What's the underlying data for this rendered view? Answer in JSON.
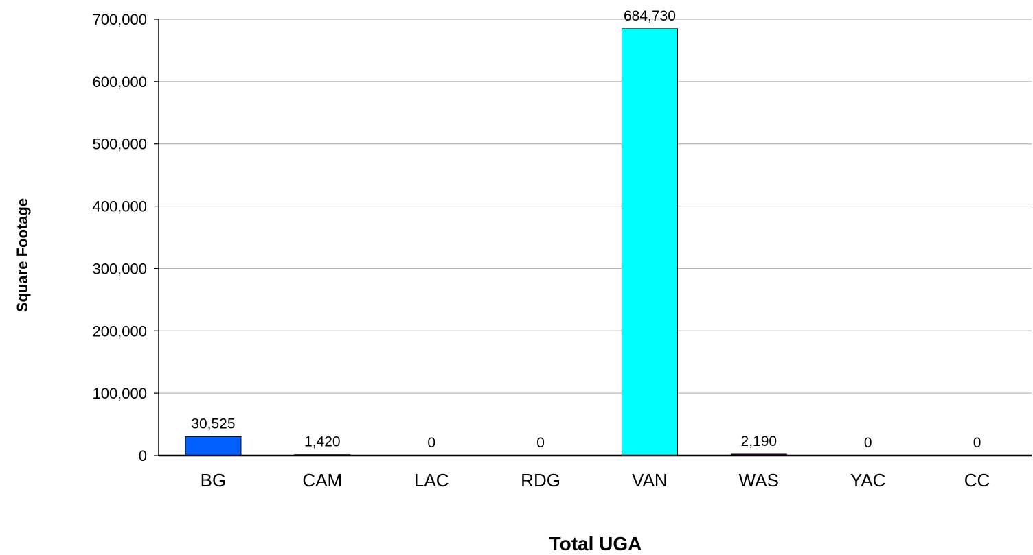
{
  "chart_data": {
    "type": "bar",
    "title": "",
    "xlabel": "Total UGA",
    "ylabel": "Square Footage",
    "categories": [
      "BG",
      "CAM",
      "LAC",
      "RDG",
      "VAN",
      "WAS",
      "YAC",
      "CC"
    ],
    "values": [
      30525,
      1420,
      0,
      0,
      684730,
      2190,
      0,
      0
    ],
    "data_labels": [
      "30,525",
      "1,420",
      "0",
      "0",
      "684,730",
      "2,190",
      "0",
      "0"
    ],
    "bar_colors": [
      "#0060ff",
      "#800000",
      "#808080",
      "#808080",
      "#00ffff",
      "#800080",
      "#808080",
      "#808080"
    ],
    "ylim": [
      0,
      700000
    ],
    "yticks": [
      0,
      100000,
      200000,
      300000,
      400000,
      500000,
      600000,
      700000
    ],
    "ytick_labels": [
      "0",
      "100,000",
      "200,000",
      "300,000",
      "400,000",
      "500,000",
      "600,000",
      "700,000"
    ],
    "grid": true,
    "legend": "none"
  }
}
